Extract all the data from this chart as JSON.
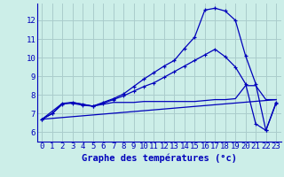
{
  "bg_color": "#cceee8",
  "grid_color": "#aacccc",
  "line_color": "#0000bb",
  "xlabel": "Graphe des températures (°c)",
  "xlabel_fontsize": 7.5,
  "tick_fontsize": 6.5,
  "ylabel_values": [
    6,
    7,
    8,
    9,
    10,
    11,
    12
  ],
  "xlim": [
    -0.5,
    23.5
  ],
  "ylim": [
    5.5,
    12.9
  ],
  "x_ticks": [
    0,
    1,
    2,
    3,
    4,
    5,
    6,
    7,
    8,
    9,
    10,
    11,
    12,
    13,
    14,
    15,
    16,
    17,
    18,
    19,
    20,
    21,
    22,
    23
  ],
  "series1_x": [
    0,
    1,
    2,
    3,
    4,
    5,
    6,
    7,
    8,
    9,
    10,
    11,
    12,
    13,
    14,
    15,
    16,
    17,
    18,
    19,
    20,
    21,
    22,
    23
  ],
  "series1_y": [
    6.7,
    7.0,
    7.5,
    7.6,
    7.5,
    7.4,
    7.6,
    7.8,
    8.05,
    8.45,
    8.85,
    9.2,
    9.55,
    9.85,
    10.5,
    11.1,
    12.55,
    12.65,
    12.5,
    12.0,
    10.1,
    8.6,
    6.1,
    7.6
  ],
  "series2_x": [
    0,
    1,
    2,
    3,
    4,
    5,
    6,
    7,
    8,
    9,
    10,
    11,
    12,
    13,
    14,
    15,
    16,
    17,
    18,
    19,
    20,
    21,
    22,
    23
  ],
  "series2_y": [
    6.7,
    7.0,
    7.55,
    7.55,
    7.45,
    7.4,
    7.55,
    7.75,
    7.95,
    8.2,
    8.45,
    8.65,
    8.95,
    9.25,
    9.55,
    9.85,
    10.15,
    10.45,
    10.05,
    9.5,
    8.6,
    6.45,
    6.1,
    7.55
  ],
  "series3_x": [
    0,
    2,
    3,
    4,
    5,
    6,
    7,
    8,
    9,
    10,
    11,
    12,
    13,
    14,
    15,
    16,
    17,
    18,
    19,
    20,
    21,
    22,
    23
  ],
  "series3_y": [
    6.7,
    7.55,
    7.6,
    7.5,
    7.4,
    7.5,
    7.6,
    7.6,
    7.6,
    7.65,
    7.65,
    7.65,
    7.65,
    7.65,
    7.65,
    7.7,
    7.75,
    7.75,
    7.8,
    8.5,
    8.5,
    7.75,
    7.75
  ],
  "series4_x": [
    0,
    23
  ],
  "series4_y": [
    6.7,
    7.75
  ]
}
